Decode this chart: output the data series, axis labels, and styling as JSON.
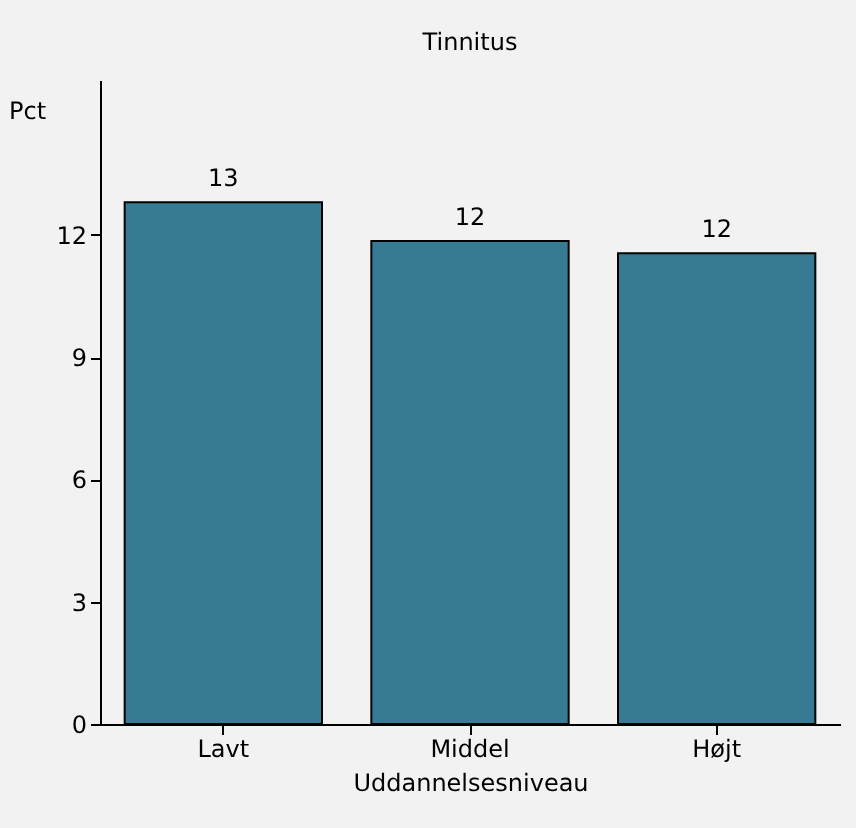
{
  "chart_data": {
    "type": "bar",
    "title": "Tinnitus",
    "xlabel": "Uddannelsesniveau",
    "ylabel": "Pct",
    "categories": [
      "Lavt",
      "Middel",
      "Højt"
    ],
    "values": [
      12.8,
      11.85,
      11.55
    ],
    "value_labels": [
      "13",
      "12",
      "12"
    ],
    "color": "#367b93",
    "ylim": [
      0,
      15.8
    ],
    "yticks": [
      0,
      3,
      6,
      9,
      12
    ],
    "grid": false
  }
}
